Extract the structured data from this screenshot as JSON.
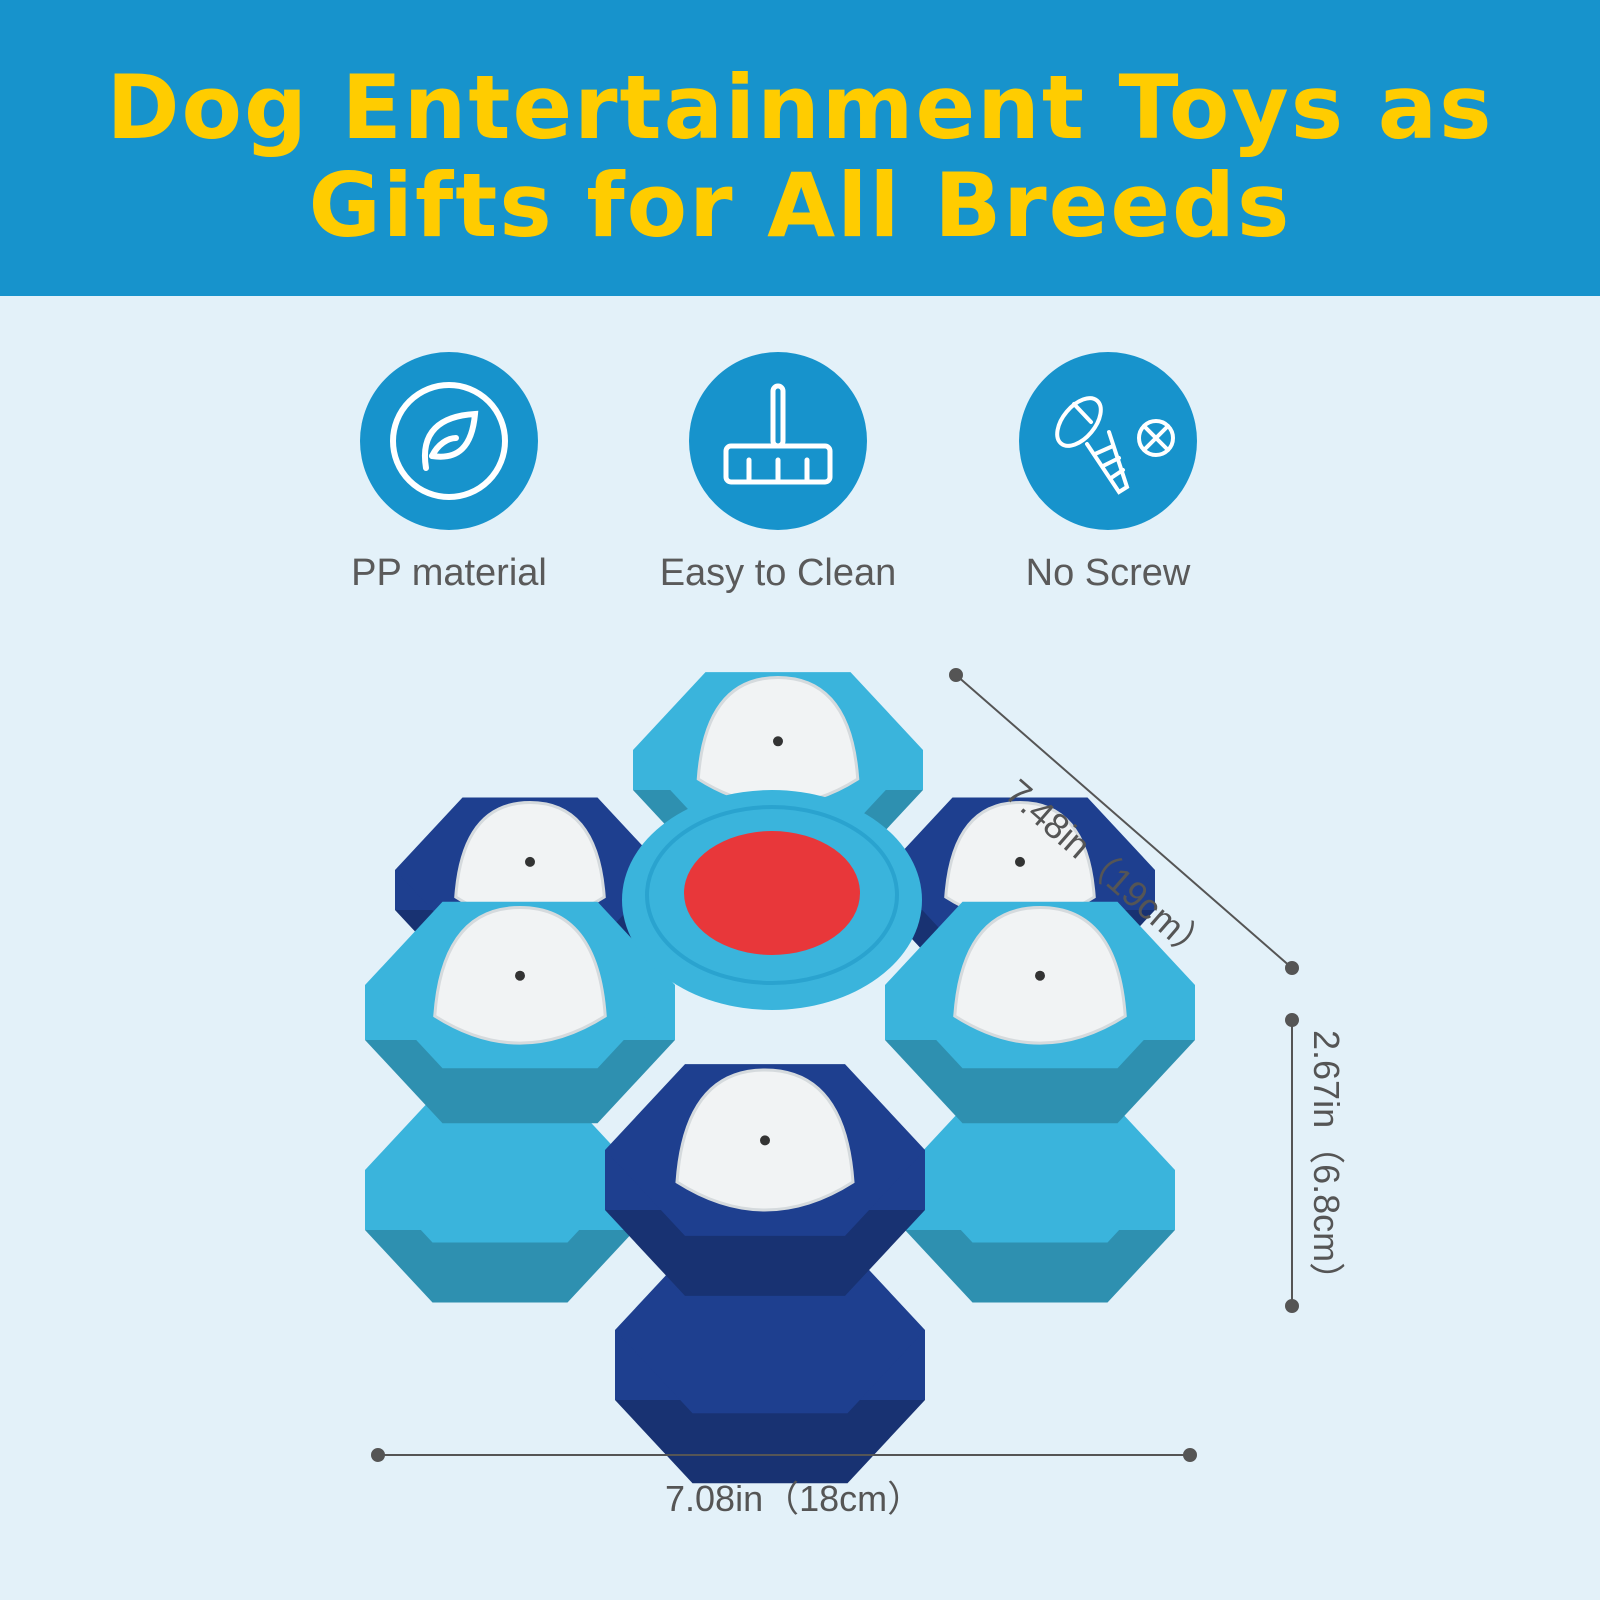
{
  "header": {
    "title_line1": "Dog Entertainment Toys as",
    "title_line2": "Gifts for All Breeds"
  },
  "features": [
    {
      "label": "PP material",
      "icon": "leaf-icon"
    },
    {
      "label": "Easy to Clean",
      "icon": "broom-icon"
    },
    {
      "label": "No Screw",
      "icon": "screw-crossed-icon"
    }
  ],
  "dimensions": {
    "length": "7.48in（19cm）",
    "height": "2.67in（6.8cm）",
    "width": "7.08in（18cm）"
  },
  "colors": {
    "header": "#1793cc",
    "title": "#ffcc00",
    "background": "#e3f1f9",
    "toy_light": "#3ab4dc",
    "toy_dark": "#1e3f8f",
    "button": "#e8373a"
  }
}
